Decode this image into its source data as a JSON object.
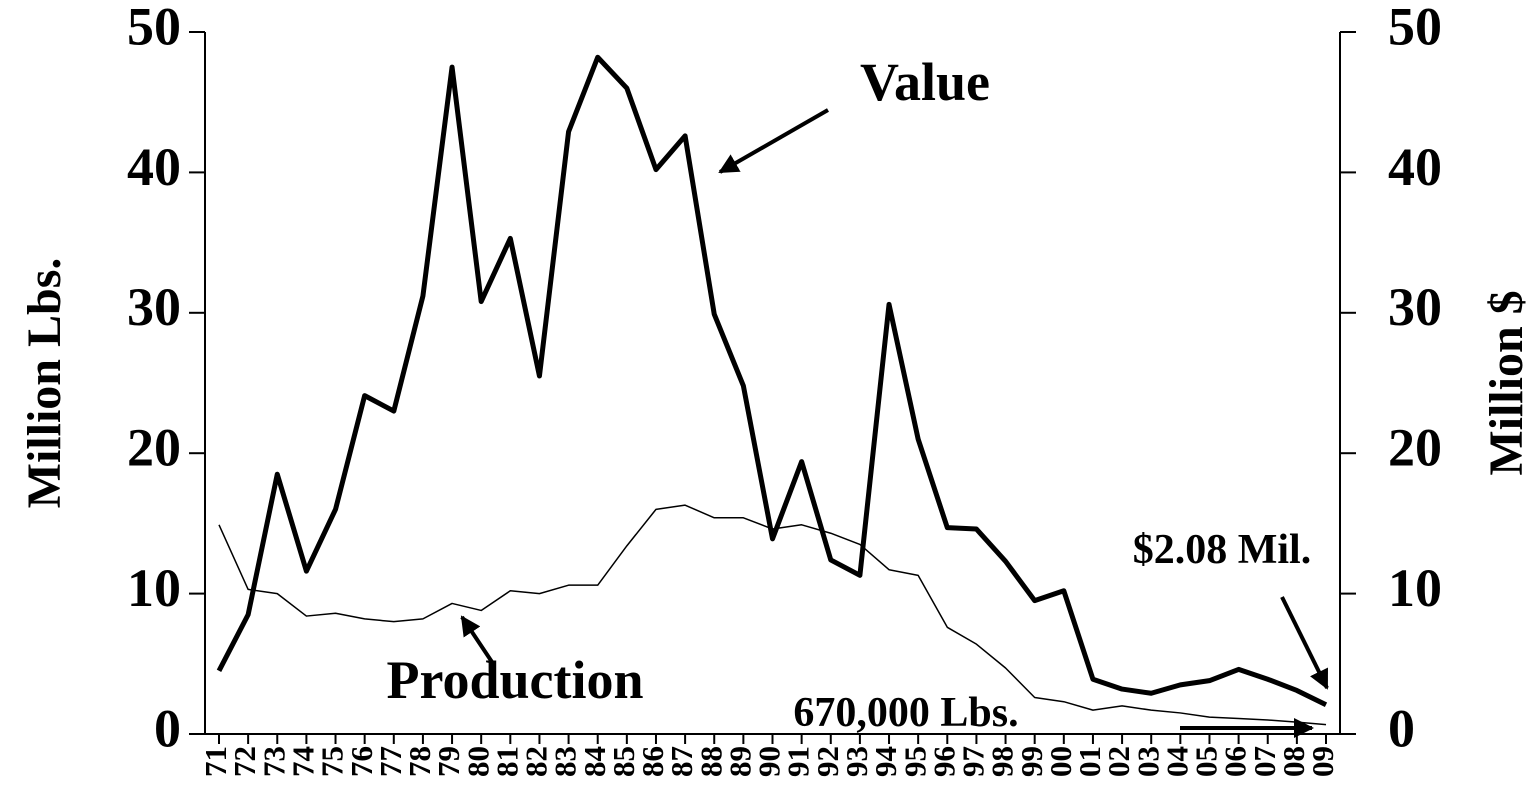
{
  "chart_data": {
    "type": "line",
    "ylabel": "Million Lbs.",
    "y2label": "Million $",
    "annotations": [
      "Value",
      "Production",
      "$2.08 Mil.",
      "670,000 Lbs."
    ],
    "categories": [
      "71",
      "72",
      "73",
      "74",
      "75",
      "76",
      "77",
      "78",
      "79",
      "80",
      "81",
      "82",
      "83",
      "84",
      "85",
      "86",
      "87",
      "88",
      "89",
      "90",
      "91",
      "92",
      "93",
      "94",
      "95",
      "96",
      "97",
      "98",
      "99",
      "00",
      "01",
      "02",
      "03",
      "04",
      "05",
      "06",
      "07",
      "08",
      "09"
    ],
    "series": [
      {
        "name": "Production",
        "color": "#000000",
        "width": 1.5,
        "axis": "y",
        "values": [
          14.9,
          10.3,
          10,
          8.4,
          8.6,
          8.2,
          8,
          8.2,
          9.3,
          8.8,
          10.2,
          10,
          10.6,
          10.6,
          13.4,
          16,
          16.3,
          15.4,
          15.4,
          14.6,
          14.9,
          14.3,
          13.5,
          11.7,
          11.3,
          7.6,
          6.4,
          4.7,
          2.6,
          2.3,
          1.7,
          2,
          1.7,
          1.5,
          1.2,
          1.1,
          1,
          0.85,
          0.67
        ]
      },
      {
        "name": "Value",
        "color": "#000000",
        "width": 5,
        "axis": "y2",
        "values": [
          4.5,
          8.5,
          18.5,
          11.6,
          16,
          24.1,
          23,
          31.2,
          47.5,
          30.8,
          35.3,
          25.5,
          42.9,
          48.2,
          46,
          40.2,
          42.6,
          29.9,
          24.8,
          13.9,
          19.4,
          12.4,
          11.3,
          30.6,
          21,
          14.7,
          14.6,
          12.3,
          9.5,
          10.2,
          3.9,
          3.2,
          2.9,
          3.5,
          3.8,
          4.6,
          3.9,
          3.1,
          2.08
        ]
      }
    ],
    "ylim": [
      0,
      50
    ],
    "yticks": [
      0,
      10,
      20,
      30,
      40,
      50
    ],
    "y2lim": [
      0,
      50
    ],
    "y2ticks": [
      0,
      10,
      20,
      30,
      40,
      50
    ]
  }
}
